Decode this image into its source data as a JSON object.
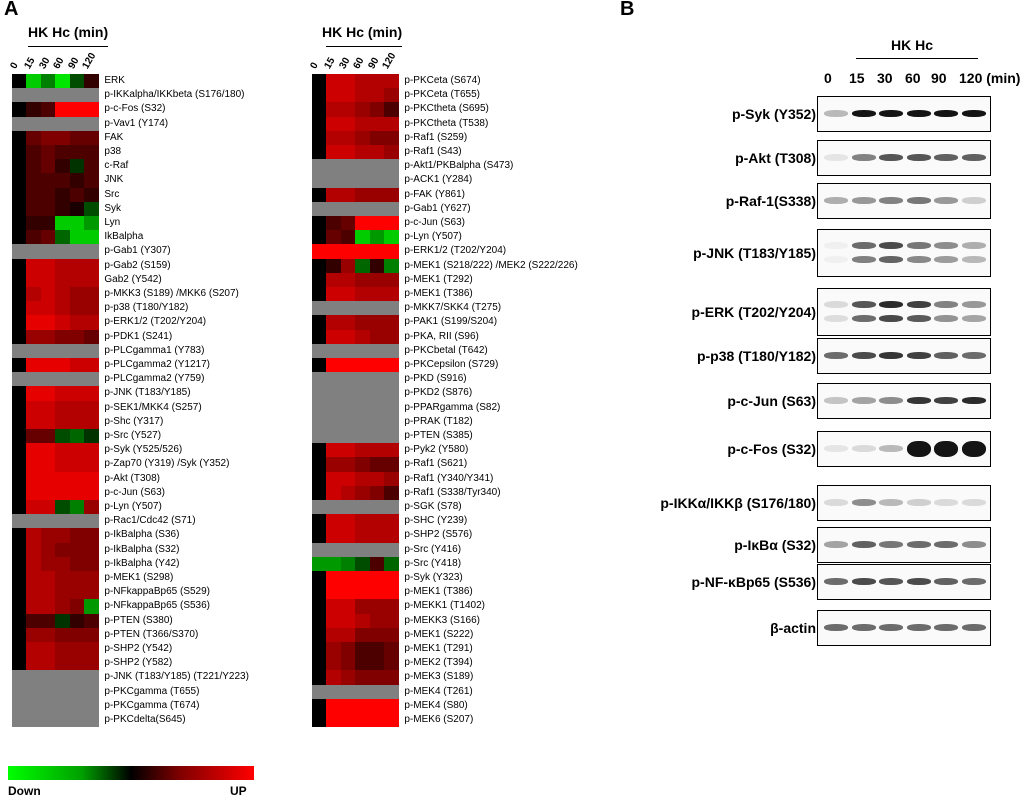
{
  "panels": {
    "a": "A",
    "b": "B"
  },
  "heatmap": {
    "title": "HK Hc (min)",
    "timepoints": [
      "0",
      "15",
      "30",
      "60",
      "90",
      "120"
    ],
    "legend": {
      "down": "Down",
      "up": "UP"
    },
    "colors": {
      "down": "#00ff00",
      "zero": "#000000",
      "up": "#ff0000",
      "na": "#808080"
    },
    "left_labels": [
      "ERK",
      "p-IKKalpha/IKKbeta (S176/180)",
      "p-c-Fos (S32)",
      "p-Vav1 (Y174)",
      "FAK",
      "p38",
      "c-Raf",
      "JNK",
      "Src",
      "Syk",
      "Lyn",
      "IkBalpha",
      "p-Gab1 (Y307)",
      "p-Gab2 (S159)",
      "Gab2 (Y542)",
      "p-MKK3 (S189) /MKK6 (S207)",
      "p-p38 (T180/Y182)",
      "p-ERK1/2 (T202/Y204)",
      "p-PDK1 (S241)",
      "p-PLCgamma1 (Y783)",
      "p-PLCgamma2 (Y1217)",
      "p-PLCgamma2 (Y759)",
      "p-JNK (T183/Y185)",
      "p-SEK1/MKK4 (S257)",
      "p-Shc (Y317)",
      "p-Src (Y527)",
      "p-Syk (Y525/526)",
      "p-Zap70 (Y319) /Syk (Y352)",
      "p-Akt (T308)",
      "p-c-Jun (S63)",
      "p-Lyn (Y507)",
      "p-Rac1/Cdc42 (S71)",
      "p-IkBalpha (S36)",
      "p-IkBalpha (S32)",
      "p-IkBalpha (Y42)",
      "p-MEK1 (S298)",
      "p-NFkappaBp65 (S529)",
      "p-NFkappaBp65 (S536)",
      "p-PTEN (S380)",
      "p-PTEN (T366/S370)",
      "p-SHP2 (Y542)",
      "p-SHP2 (Y582)",
      "p-JNK (T183/Y185) (T221/Y223)",
      "p-PKCgamma (T655)",
      "p-PKCgamma (T674)",
      "p-PKCdelta(S645)"
    ],
    "left_values": [
      [
        0,
        -0.8,
        -0.5,
        -0.9,
        -0.3,
        0.2
      ],
      [
        null,
        null,
        null,
        null,
        null,
        null
      ],
      [
        0,
        0.2,
        0.3,
        1,
        1,
        1
      ],
      [
        null,
        null,
        null,
        null,
        null,
        null
      ],
      [
        0,
        0.4,
        0.5,
        0.5,
        0.4,
        0.4
      ],
      [
        0,
        0.3,
        0.4,
        0.3,
        0.3,
        0.3
      ],
      [
        0,
        0.3,
        0.4,
        0.2,
        -0.2,
        0.3
      ],
      [
        0,
        0.3,
        0.3,
        0.3,
        0.2,
        0.3
      ],
      [
        0,
        0.3,
        0.3,
        0.2,
        0.3,
        0.2
      ],
      [
        0,
        0.3,
        0.3,
        0.2,
        0.1,
        -0.3
      ],
      [
        0,
        0.2,
        0.2,
        -0.8,
        -0.8,
        -0.6
      ],
      [
        0,
        0.3,
        0.4,
        -0.4,
        -0.8,
        -0.8
      ],
      [
        null,
        null,
        null,
        null,
        null,
        null
      ],
      [
        0,
        0.8,
        0.8,
        0.7,
        0.7,
        0.7
      ],
      [
        0,
        0.8,
        0.8,
        0.7,
        0.7,
        0.7
      ],
      [
        0,
        0.7,
        0.8,
        0.7,
        0.6,
        0.6
      ],
      [
        0,
        0.8,
        0.8,
        0.7,
        0.6,
        0.6
      ],
      [
        0,
        0.9,
        0.9,
        0.8,
        0.7,
        0.7
      ],
      [
        0,
        0.6,
        0.6,
        0.5,
        0.5,
        0.4
      ],
      [
        null,
        null,
        null,
        null,
        null,
        null
      ],
      [
        0,
        0.9,
        0.9,
        0.9,
        0.8,
        0.8
      ],
      [
        null,
        null,
        null,
        null,
        null,
        null
      ],
      [
        0,
        0.9,
        0.9,
        0.8,
        0.8,
        0.8
      ],
      [
        0,
        0.8,
        0.8,
        0.7,
        0.7,
        0.7
      ],
      [
        0,
        0.8,
        0.8,
        0.7,
        0.7,
        0.7
      ],
      [
        0,
        0.4,
        0.4,
        -0.3,
        -0.4,
        -0.2
      ],
      [
        0,
        0.9,
        0.9,
        0.8,
        0.8,
        0.8
      ],
      [
        0,
        0.9,
        0.9,
        0.8,
        0.8,
        0.8
      ],
      [
        0,
        0.9,
        0.9,
        0.9,
        0.9,
        0.9
      ],
      [
        0,
        0.9,
        0.9,
        0.9,
        0.9,
        0.9
      ],
      [
        0,
        0.8,
        0.8,
        -0.3,
        -0.5,
        0.6
      ],
      [
        null,
        null,
        null,
        null,
        null,
        null
      ],
      [
        0,
        0.7,
        0.6,
        0.6,
        0.5,
        0.5
      ],
      [
        0,
        0.7,
        0.6,
        0.5,
        0.5,
        0.5
      ],
      [
        0,
        0.7,
        0.6,
        0.6,
        0.5,
        0.5
      ],
      [
        0,
        0.7,
        0.7,
        0.6,
        0.6,
        0.6
      ],
      [
        0,
        0.7,
        0.7,
        0.6,
        0.6,
        0.6
      ],
      [
        0,
        0.7,
        0.7,
        0.6,
        0.5,
        -0.6
      ],
      [
        0,
        0.3,
        0.3,
        -0.2,
        0.2,
        0.3
      ],
      [
        0,
        0.6,
        0.6,
        0.5,
        0.5,
        0.5
      ],
      [
        0,
        0.7,
        0.7,
        0.6,
        0.6,
        0.6
      ],
      [
        0,
        0.7,
        0.7,
        0.6,
        0.6,
        0.6
      ],
      [
        null,
        null,
        null,
        null,
        null,
        null
      ],
      [
        null,
        null,
        null,
        null,
        null,
        null
      ],
      [
        null,
        null,
        null,
        null,
        null,
        null
      ],
      [
        null,
        null,
        null,
        null,
        null,
        null
      ]
    ],
    "right_labels": [
      "p-PKCeta (S674)",
      "p-PKCeta (T655)",
      "p-PKCtheta (S695)",
      "p-PKCtheta (T538)",
      "p-Raf1 (S259)",
      "p-Raf1 (S43)",
      "p-Akt1/PKBalpha (S473)",
      "p-ACK1 (Y284)",
      "p-FAK (Y861)",
      "p-Gab1 (Y627)",
      "p-c-Jun (S63)",
      "p-Lyn (Y507)",
      "p-ERK1/2 (T202/Y204)",
      "p-MEK1 (S218/222) /MEK2 (S222/226)",
      "p-MEK1 (T292)",
      "p-MEK1 (T386)",
      "p-MKK7/SKK4 (T275)",
      "p-PAK1 (S199/S204)",
      "p-PKA, RII (S96)",
      "p-PKCbetal (T642)",
      "p-PKCepsilon (S729)",
      "p-PKD (S916)",
      "p-PKD2 (S876)",
      "p-PPARgamma (S82)",
      "p-PRAK (T182)",
      "p-PTEN (S385)",
      "p-Pyk2 (Y580)",
      "p-Raf1 (S621)",
      "p-Raf1 (Y340/Y341)",
      "p-Raf1 (S338/Tyr340)",
      "p-SGK (S78)",
      "p-SHC (Y239)",
      "p-SHP2 (S576)",
      "p-Src (Y416)",
      "p-Src (Y418)",
      "p-Syk (Y323)",
      "p-MEK1 (T386)",
      "p-MEKK1 (T1402)",
      "p-MEKK3 (S166)",
      "p-MEK1 (S222)",
      "p-MEK1 (T291)",
      "p-MEK2 (T394)",
      "p-MEK3 (S189)",
      "p-MEK4 (T261)",
      "p-MEK4 (S80)",
      "p-MEK6 (S207)"
    ],
    "right_values": [
      [
        0,
        0.8,
        0.8,
        0.7,
        0.7,
        0.7
      ],
      [
        0,
        0.8,
        0.8,
        0.7,
        0.7,
        0.6
      ],
      [
        0,
        0.7,
        0.7,
        0.6,
        0.5,
        0.3
      ],
      [
        0,
        0.8,
        0.8,
        0.7,
        0.7,
        0.7
      ],
      [
        0,
        0.7,
        0.7,
        0.6,
        0.5,
        0.5
      ],
      [
        0,
        0.8,
        0.8,
        0.7,
        0.7,
        0.6
      ],
      [
        null,
        null,
        null,
        null,
        null,
        null
      ],
      [
        null,
        null,
        null,
        null,
        null,
        null
      ],
      [
        0,
        0.7,
        0.7,
        0.6,
        0.6,
        0.6
      ],
      [
        null,
        null,
        null,
        null,
        null,
        null
      ],
      [
        0,
        0.3,
        0.4,
        1,
        1,
        1
      ],
      [
        0,
        0.4,
        0.3,
        -0.8,
        -0.6,
        -0.8
      ],
      [
        1,
        1,
        1,
        1,
        1,
        1
      ],
      [
        0,
        0.2,
        0.6,
        -0.4,
        0.2,
        -0.5
      ],
      [
        0,
        0.7,
        0.7,
        0.6,
        0.6,
        0.6
      ],
      [
        0,
        0.8,
        0.8,
        0.7,
        0.7,
        0.7
      ],
      [
        null,
        null,
        null,
        null,
        null,
        null
      ],
      [
        0,
        0.7,
        0.7,
        0.6,
        0.6,
        0.6
      ],
      [
        0,
        0.8,
        0.8,
        0.7,
        0.6,
        0.6
      ],
      [
        null,
        null,
        null,
        null,
        null,
        null
      ],
      [
        0,
        1,
        1,
        1,
        1,
        1
      ],
      [
        null,
        null,
        null,
        null,
        null,
        null
      ],
      [
        null,
        null,
        null,
        null,
        null,
        null
      ],
      [
        null,
        null,
        null,
        null,
        null,
        null
      ],
      [
        null,
        null,
        null,
        null,
        null,
        null
      ],
      [
        null,
        null,
        null,
        null,
        null,
        null
      ],
      [
        0,
        0.8,
        0.8,
        0.7,
        0.7,
        0.7
      ],
      [
        0,
        0.6,
        0.6,
        0.5,
        0.4,
        0.4
      ],
      [
        0,
        0.8,
        0.8,
        0.7,
        0.7,
        0.6
      ],
      [
        0,
        0.8,
        0.7,
        0.6,
        0.5,
        0.3
      ],
      [
        null,
        null,
        null,
        null,
        null,
        null
      ],
      [
        0,
        0.8,
        0.8,
        0.7,
        0.7,
        0.7
      ],
      [
        0,
        0.8,
        0.8,
        0.7,
        0.7,
        0.7
      ],
      [
        null,
        null,
        null,
        null,
        null,
        null
      ],
      [
        -0.6,
        -0.6,
        -0.5,
        -0.3,
        0.3,
        -0.4
      ],
      [
        0,
        1,
        1,
        1,
        1,
        1
      ],
      [
        0,
        1,
        1,
        1,
        1,
        1
      ],
      [
        0,
        0.8,
        0.8,
        0.6,
        0.6,
        0.6
      ],
      [
        0,
        0.8,
        0.8,
        0.7,
        0.6,
        0.6
      ],
      [
        0,
        0.7,
        0.7,
        0.5,
        0.5,
        0.5
      ],
      [
        0,
        0.6,
        0.5,
        0.3,
        0.3,
        0.4
      ],
      [
        0,
        0.6,
        0.5,
        0.3,
        0.3,
        0.4
      ],
      [
        0,
        0.7,
        0.6,
        0.5,
        0.5,
        0.5
      ],
      [
        null,
        null,
        null,
        null,
        null,
        null
      ],
      [
        0,
        1,
        1,
        1,
        1,
        1
      ],
      [
        0,
        1,
        1,
        1,
        1,
        1
      ]
    ]
  },
  "western": {
    "title": "HK Hc",
    "timepoints": [
      "0",
      "15",
      "30",
      "60",
      "90",
      "120 (min)"
    ],
    "rows": [
      {
        "label": "p-Syk (Y352)",
        "intensity": [
          0.25,
          1,
          1,
          1,
          1,
          1
        ]
      },
      {
        "label": "p-Akt (T308)",
        "intensity": [
          0.05,
          0.5,
          0.7,
          0.7,
          0.65,
          0.65
        ]
      },
      {
        "label": "p-Raf-1(S338)",
        "intensity": [
          0.3,
          0.4,
          0.5,
          0.55,
          0.4,
          0.15
        ]
      },
      {
        "label": "p-JNK (T183/Y185)",
        "intensity": [
          0,
          0.6,
          0.75,
          0.55,
          0.45,
          0.3
        ]
      },
      {
        "label": "p-ERK (T202/Y204)",
        "intensity": [
          0.1,
          0.7,
          0.9,
          0.8,
          0.5,
          0.4
        ]
      },
      {
        "label": "p-p38 (T180/Y182)",
        "intensity": [
          0.6,
          0.75,
          0.85,
          0.8,
          0.65,
          0.6
        ]
      },
      {
        "label": "p-c-Jun (S63)",
        "intensity": [
          0.2,
          0.35,
          0.45,
          0.85,
          0.8,
          0.9
        ]
      },
      {
        "label": "p-c-Fos (S32)",
        "intensity": [
          0.05,
          0.1,
          0.25,
          1,
          1,
          1
        ]
      },
      {
        "label": "p-IKKα/IKKβ (S176/180)",
        "intensity": [
          0.1,
          0.45,
          0.25,
          0.15,
          0.1,
          0.1
        ]
      },
      {
        "label": "p-IκBα (S32)",
        "intensity": [
          0.35,
          0.65,
          0.55,
          0.6,
          0.6,
          0.45
        ]
      },
      {
        "label": "p-NF-κBp65 (S536)",
        "intensity": [
          0.6,
          0.75,
          0.7,
          0.75,
          0.65,
          0.6
        ]
      },
      {
        "label": "β-actin",
        "intensity": [
          0.6,
          0.6,
          0.6,
          0.6,
          0.6,
          0.6
        ]
      }
    ]
  }
}
